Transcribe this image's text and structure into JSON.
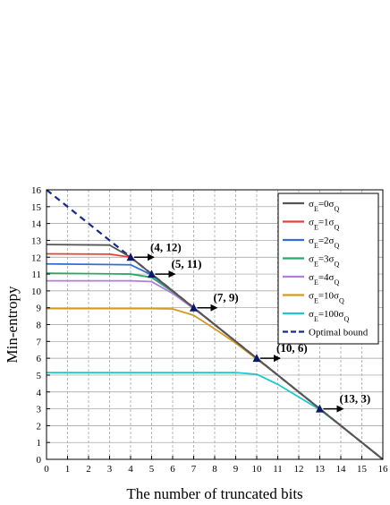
{
  "chart_data": {
    "type": "line",
    "xlabel": "The number of truncated bits",
    "ylabel": "Min-entropy",
    "xlim": [
      0,
      16
    ],
    "ylim": [
      0,
      16
    ],
    "x_ticks": [
      "0",
      "1",
      "2",
      "3",
      "4",
      "5",
      "6",
      "7",
      "8",
      "9",
      "10",
      "11",
      "12",
      "13",
      "14",
      "15",
      "16"
    ],
    "y_ticks": [
      "0",
      "1",
      "2",
      "3",
      "4",
      "5",
      "6",
      "7",
      "8",
      "9",
      "10",
      "11",
      "12",
      "13",
      "14",
      "15",
      "16"
    ],
    "grid": true,
    "legend_position": "top-right",
    "series": [
      {
        "name_base": "σ",
        "name_sub": "E",
        "name_mid": "=0σ",
        "name_sub2": "Q",
        "color": "#555555",
        "dash": false,
        "x": [
          0,
          3,
          4,
          5,
          6,
          7,
          8,
          9,
          10,
          11,
          12,
          13,
          14,
          15,
          16
        ],
        "y": [
          12.75,
          12.72,
          12.0,
          11.0,
          10.0,
          9.0,
          8.0,
          7.0,
          6.0,
          5.0,
          4.0,
          3.0,
          2.0,
          1.0,
          0.0
        ]
      },
      {
        "name_base": "σ",
        "name_sub": "E",
        "name_mid": "=1σ",
        "name_sub2": "Q",
        "color": "#e8413c",
        "dash": false,
        "x": [
          0,
          3,
          4,
          5,
          6,
          7,
          8,
          9,
          10,
          11,
          12,
          13,
          14,
          15,
          16
        ],
        "y": [
          12.2,
          12.18,
          12.0,
          11.0,
          10.0,
          9.0,
          8.0,
          7.0,
          6.0,
          5.0,
          4.0,
          3.0,
          2.0,
          1.0,
          0.0
        ]
      },
      {
        "name_base": "σ",
        "name_sub": "E",
        "name_mid": "=2σ",
        "name_sub2": "Q",
        "color": "#2f6fd6",
        "dash": false,
        "x": [
          0,
          4,
          5,
          6,
          7,
          8,
          9,
          10,
          11,
          12,
          13,
          14,
          15,
          16
        ],
        "y": [
          11.6,
          11.55,
          10.95,
          10.0,
          9.0,
          8.0,
          7.0,
          6.0,
          5.0,
          4.0,
          3.0,
          2.0,
          1.0,
          0.0
        ]
      },
      {
        "name_base": "σ",
        "name_sub": "E",
        "name_mid": "=3σ",
        "name_sub2": "Q",
        "color": "#2aa86a",
        "dash": false,
        "x": [
          0,
          4,
          5,
          6,
          7,
          8,
          9,
          10,
          11,
          12,
          13,
          14,
          15,
          16
        ],
        "y": [
          11.05,
          11.0,
          10.8,
          9.95,
          9.0,
          8.0,
          7.0,
          6.0,
          5.0,
          4.0,
          3.0,
          2.0,
          1.0,
          0.0
        ]
      },
      {
        "name_base": "σ",
        "name_sub": "E",
        "name_mid": "=4σ",
        "name_sub2": "Q",
        "color": "#b07ee0",
        "dash": false,
        "x": [
          0,
          4,
          5,
          6,
          7,
          8,
          9,
          10,
          11,
          12,
          13,
          14,
          15,
          16
        ],
        "y": [
          10.6,
          10.6,
          10.55,
          9.85,
          8.95,
          8.0,
          7.0,
          6.0,
          5.0,
          4.0,
          3.0,
          2.0,
          1.0,
          0.0
        ]
      },
      {
        "name_base": "σ",
        "name_sub": "E",
        "name_mid": "=10σ",
        "name_sub2": "Q",
        "color": "#d29a1e",
        "dash": false,
        "x": [
          0,
          5,
          6,
          7,
          8,
          9,
          10,
          11,
          12,
          13,
          14,
          15,
          16
        ],
        "y": [
          8.95,
          8.95,
          8.93,
          8.55,
          7.75,
          6.9,
          5.95,
          5.0,
          4.0,
          3.0,
          2.0,
          1.0,
          0.0
        ]
      },
      {
        "name_base": "σ",
        "name_sub": "E",
        "name_mid": "=100σ",
        "name_sub2": "Q",
        "color": "#1ec8cc",
        "dash": false,
        "x": [
          0,
          6,
          7,
          8,
          9,
          10,
          11,
          12,
          13,
          14,
          15,
          16
        ],
        "y": [
          5.15,
          5.15,
          5.15,
          5.15,
          5.15,
          5.05,
          4.45,
          3.7,
          2.95,
          2.0,
          1.0,
          0.0
        ]
      },
      {
        "name_base": "Optimal bound",
        "name_sub": "",
        "name_mid": "",
        "name_sub2": "",
        "color": "#1a2a8c",
        "dash": true,
        "x": [
          0,
          16
        ],
        "y": [
          16,
          0
        ]
      }
    ],
    "markers": [
      {
        "x": 4,
        "y": 12,
        "label": "(4, 12)"
      },
      {
        "x": 5,
        "y": 11,
        "label": "(5, 11)"
      },
      {
        "x": 7,
        "y": 9,
        "label": "(7, 9)"
      },
      {
        "x": 10,
        "y": 6,
        "label": "(10, 6)"
      },
      {
        "x": 13,
        "y": 3,
        "label": "(13, 3)"
      }
    ]
  }
}
